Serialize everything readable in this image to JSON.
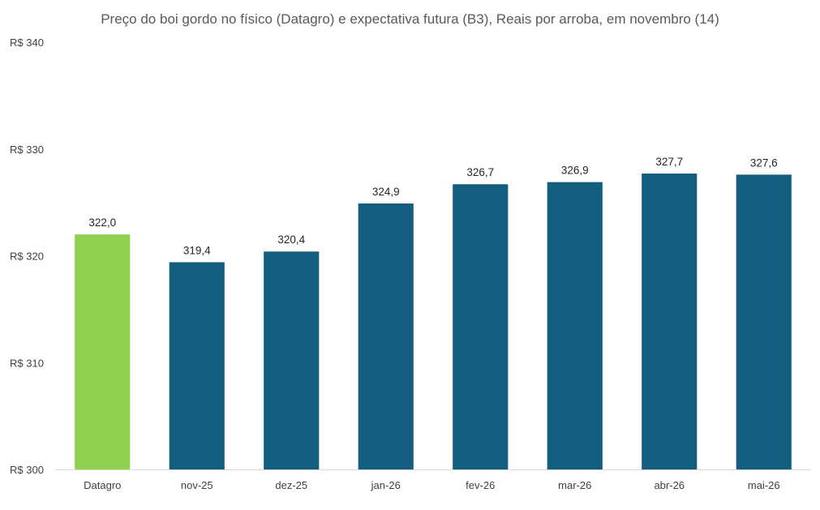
{
  "chart_data": {
    "type": "bar",
    "title": "Preço do boi gordo no físico (Datagro)  e expectativa futura (B3), Reais por arroba, em novembro (14)",
    "xlabel": "",
    "ylabel": "",
    "ylim": [
      300,
      340
    ],
    "yticks": [
      300,
      310,
      320,
      330,
      340
    ],
    "ytick_labels": [
      "R$ 300",
      "R$ 310",
      "R$ 320",
      "R$ 330",
      "R$ 340"
    ],
    "grid": false,
    "categories": [
      "Datagro",
      "nov-25",
      "dez-25",
      "jan-26",
      "fev-26",
      "mar-26",
      "abr-26",
      "mai-26"
    ],
    "values": [
      322.0,
      319.4,
      320.4,
      324.9,
      326.7,
      326.9,
      327.7,
      327.6
    ],
    "value_labels": [
      "322,0",
      "319,4",
      "320,4",
      "324,9",
      "326,7",
      "326,9",
      "327,7",
      "327,6"
    ],
    "colors": {
      "highlight": "#92d050",
      "bar": "#135e7f",
      "axis": "#d9d9d9"
    }
  }
}
